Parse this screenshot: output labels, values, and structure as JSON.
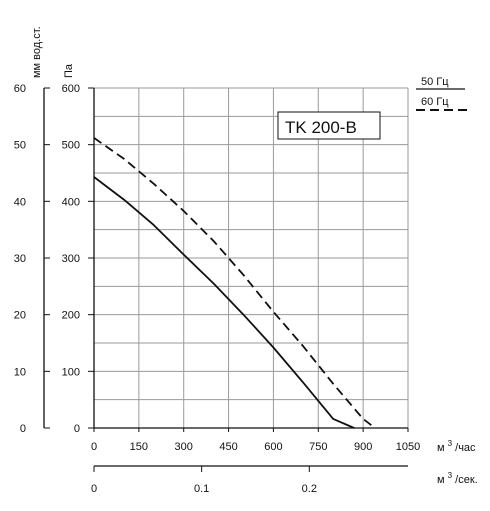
{
  "chart_data": {
    "type": "line",
    "title": "TK 200-B",
    "y_label_mm": "мм вод.ст.",
    "y_label_pa": "Па",
    "x_unit_m3h_base": "м",
    "x_unit_m3h_sup": "3",
    "x_unit_m3h_tail": "/час",
    "x_unit_m3s_base": "м",
    "x_unit_m3s_sup": "3",
    "x_unit_m3s_tail": "/сек.",
    "x_range": [
      0,
      1050
    ],
    "x_ticks": [
      0,
      150,
      300,
      450,
      600,
      750,
      900,
      1050
    ],
    "x_ticks_m3s": [
      {
        "label": "0",
        "value": 0
      },
      {
        "label": "0.1",
        "value": 0.1
      },
      {
        "label": "0.2",
        "value": 0.2
      }
    ],
    "y_pa_range": [
      0,
      600
    ],
    "y_pa_ticks": [
      0,
      100,
      200,
      300,
      400,
      500,
      600
    ],
    "y_mm_range": [
      0,
      60
    ],
    "y_mm_ticks": [
      0,
      10,
      20,
      30,
      40,
      50,
      60
    ],
    "grid": true,
    "legend_position": "top-right",
    "series": [
      {
        "name": "50 Гц",
        "dash": false,
        "x": [
          0,
          100,
          200,
          300,
          400,
          500,
          600,
          700,
          800,
          870
        ],
        "y": [
          443,
          403,
          358,
          306,
          255,
          200,
          142,
          80,
          16,
          0
        ]
      },
      {
        "name": "60 Гц",
        "dash": true,
        "x": [
          0,
          100,
          200,
          300,
          400,
          500,
          600,
          700,
          800,
          900,
          940
        ],
        "y": [
          512,
          475,
          431,
          383,
          330,
          270,
          205,
          144,
          78,
          16,
          0
        ]
      }
    ],
    "colors": {
      "line": "#111111",
      "grid": "#9a9a9a"
    }
  }
}
